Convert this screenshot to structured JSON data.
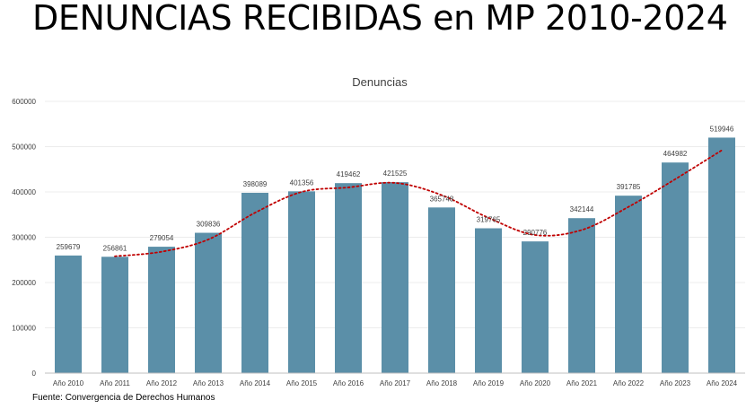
{
  "slide": {
    "title": "DENUNCIAS RECIBIDAS en MP 2010-2024",
    "source": "Fuente: Convergencia de Derechos Humanos"
  },
  "chart_data": {
    "type": "bar",
    "title": "Denuncias",
    "xlabel": "",
    "ylabel": "",
    "categories": [
      "Año 2010",
      "Año 2011",
      "Año 2012",
      "Año 2013",
      "Año 2014",
      "Año 2015",
      "Año 2016",
      "Año 2017",
      "Año 2018",
      "Año 2019",
      "Año 2020",
      "Año 2021",
      "Año 2022",
      "Año 2023",
      "Año 2024"
    ],
    "series": [
      {
        "values": [
          259679,
          256861,
          279054,
          309836,
          398089,
          401356,
          419462,
          421525,
          365748,
          319765,
          290776,
          342144,
          391785,
          464982,
          519946
        ],
        "color": "#5b8fa8"
      }
    ],
    "trendline": {
      "type": "moving average",
      "style": "dotted",
      "color": "#c00000",
      "values": [
        null,
        258000,
        268000,
        295000,
        354000,
        400000,
        410000,
        420000,
        393000,
        343000,
        305000,
        316000,
        367000,
        428000,
        492000
      ]
    },
    "ylim": [
      0,
      600000
    ],
    "yticks": [
      0,
      100000,
      200000,
      300000,
      400000,
      500000,
      600000
    ],
    "grid": true,
    "legend": "none",
    "data_labels": true
  }
}
